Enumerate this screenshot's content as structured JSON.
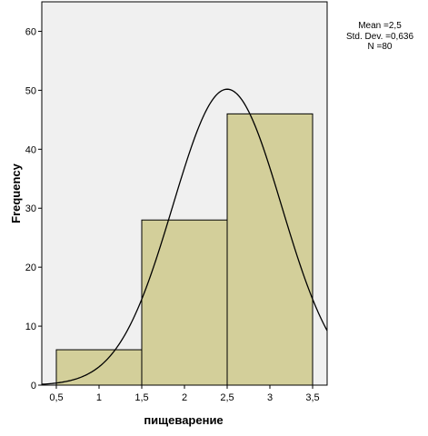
{
  "chart_data": {
    "type": "bar",
    "bins": [
      {
        "start": 0.5,
        "end": 1.5,
        "count": 6
      },
      {
        "start": 1.5,
        "end": 2.5,
        "count": 28
      },
      {
        "start": 2.5,
        "end": 3.5,
        "count": 46
      }
    ],
    "xlabel": "пищеварение",
    "ylabel": "Frequency",
    "xlim": [
      0.33,
      3.67
    ],
    "ylim": [
      0,
      65
    ],
    "xticks": [
      "0,5",
      "1",
      "1,5",
      "2",
      "2,5",
      "3",
      "3,5"
    ],
    "yticks": [
      "0",
      "10",
      "20",
      "30",
      "40",
      "50",
      "60"
    ],
    "normal_curve": {
      "mean": 2.5,
      "std": 0.636,
      "n": 80,
      "bin_width": 1
    },
    "stats": [
      "Mean =2,5",
      "Std. Dev. =0,636",
      "N =80"
    ],
    "colors": {
      "bar_fill": "#d3cf9a",
      "bar_stroke": "#000000",
      "plot_bg": "#f0f0f0",
      "curve": "#000000"
    },
    "grid": false,
    "legend_placement": "top-right"
  }
}
